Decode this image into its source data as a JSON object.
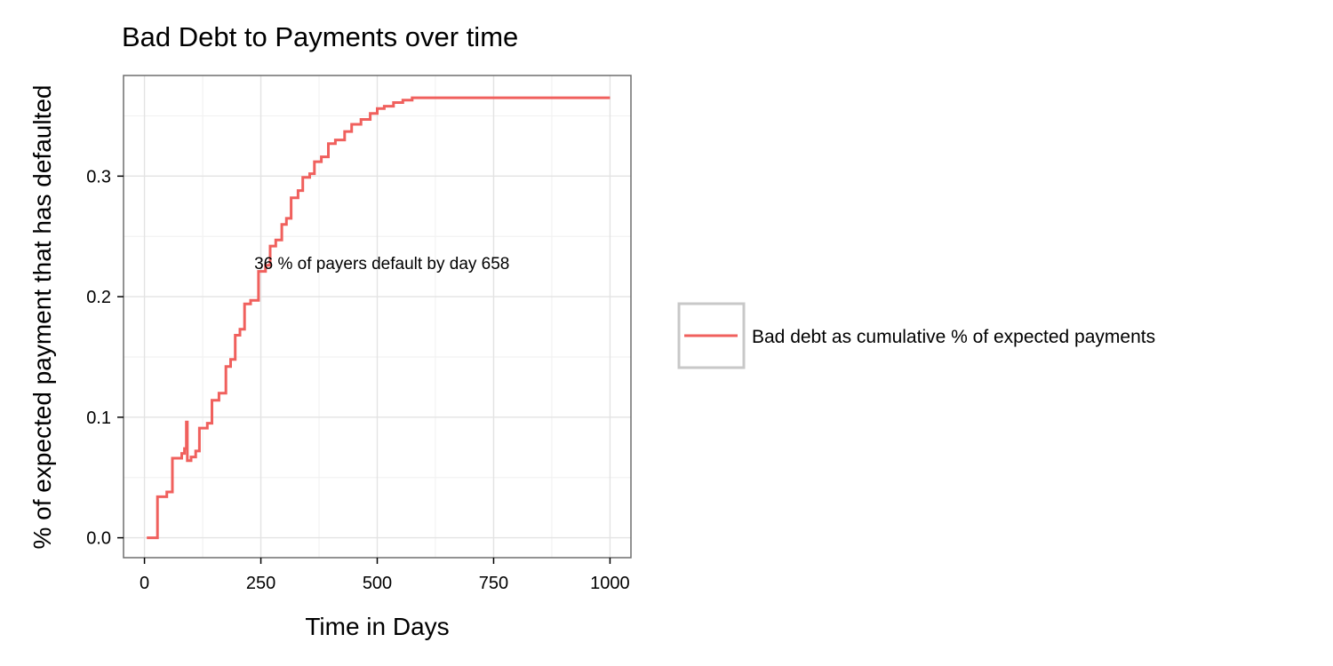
{
  "chart_data": {
    "type": "line",
    "title": "Bad Debt to Payments over time",
    "xlabel": "Time in Days",
    "ylabel": "% of expected payment that has defaulted",
    "xlim": [
      -45,
      1045
    ],
    "ylim": [
      -0.0165,
      0.3835
    ],
    "x_ticks": [
      0,
      250,
      500,
      750,
      1000
    ],
    "x_tick_labels": [
      "0",
      "250",
      "500",
      "750",
      "1000"
    ],
    "y_ticks": [
      0,
      0.1,
      0.2,
      0.3
    ],
    "y_tick_labels": [
      "0.0",
      "0.1",
      "0.2",
      "0.3"
    ],
    "grid": true,
    "legend_position": "right",
    "annotation": {
      "text": "36 % of payers default by day 658",
      "x": 510,
      "y": 0.228
    },
    "series": [
      {
        "name": "Bad debt as cumulative % of expected payments",
        "color": "#f0605d",
        "step": true,
        "x": [
          5,
          28,
          48,
          60,
          80,
          86,
          90,
          92,
          100,
          110,
          118,
          135,
          145,
          160,
          175,
          185,
          195,
          205,
          215,
          228,
          245,
          260,
          270,
          282,
          295,
          305,
          315,
          330,
          340,
          355,
          365,
          380,
          395,
          410,
          430,
          445,
          465,
          485,
          500,
          515,
          535,
          555,
          575,
          595,
          615,
          640,
          660,
          1000
        ],
        "y": [
          0.0,
          0.034,
          0.038,
          0.066,
          0.07,
          0.074,
          0.096,
          0.064,
          0.067,
          0.072,
          0.091,
          0.095,
          0.114,
          0.12,
          0.142,
          0.148,
          0.168,
          0.173,
          0.194,
          0.197,
          0.221,
          0.226,
          0.242,
          0.247,
          0.26,
          0.265,
          0.282,
          0.288,
          0.299,
          0.302,
          0.312,
          0.316,
          0.327,
          0.33,
          0.337,
          0.343,
          0.347,
          0.352,
          0.356,
          0.358,
          0.361,
          0.363,
          0.365,
          0.365,
          0.365,
          0.365,
          0.365,
          0.365
        ]
      }
    ]
  }
}
